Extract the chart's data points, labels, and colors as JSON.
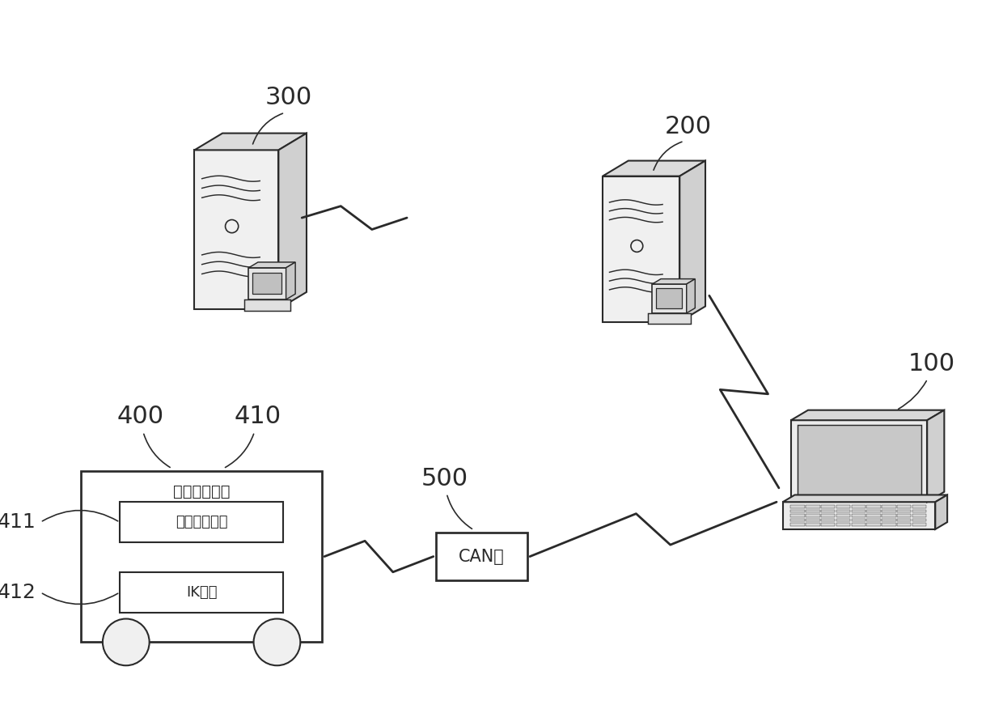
{
  "bg_color": "#ffffff",
  "lc": "#2a2a2a",
  "lw": 1.5,
  "label_300": "300",
  "label_200": "200",
  "label_100": "100",
  "label_500": "500",
  "label_400": "400",
  "label_410": "410",
  "label_411": "411",
  "label_412": "412",
  "text_ecu": "电子控制单元",
  "text_terminal": "车载终端模块",
  "text_ik": "IK模块",
  "text_can": "CAN盒"
}
